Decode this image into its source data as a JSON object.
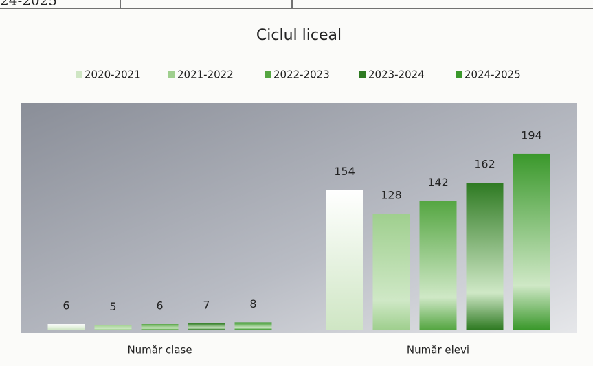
{
  "table_fragment": "24-2025",
  "chart_data": {
    "type": "bar",
    "title": "Ciclul liceal",
    "categories": [
      "Număr clase",
      "Număr elevi"
    ],
    "series": [
      {
        "name": "2020-2021",
        "color": "#cfe6c4",
        "values": [
          6,
          154
        ]
      },
      {
        "name": "2021-2022",
        "color": "#9fcf8e",
        "values": [
          5,
          128
        ]
      },
      {
        "name": "2022-2023",
        "color": "#55a642",
        "values": [
          6,
          142
        ]
      },
      {
        "name": "2023-2024",
        "color": "#2e7a22",
        "values": [
          7,
          162
        ]
      },
      {
        "name": "2024-2025",
        "color": "#3a982b",
        "values": [
          8,
          194
        ]
      }
    ],
    "ylim": [
      0,
      250
    ],
    "legend": "top"
  }
}
